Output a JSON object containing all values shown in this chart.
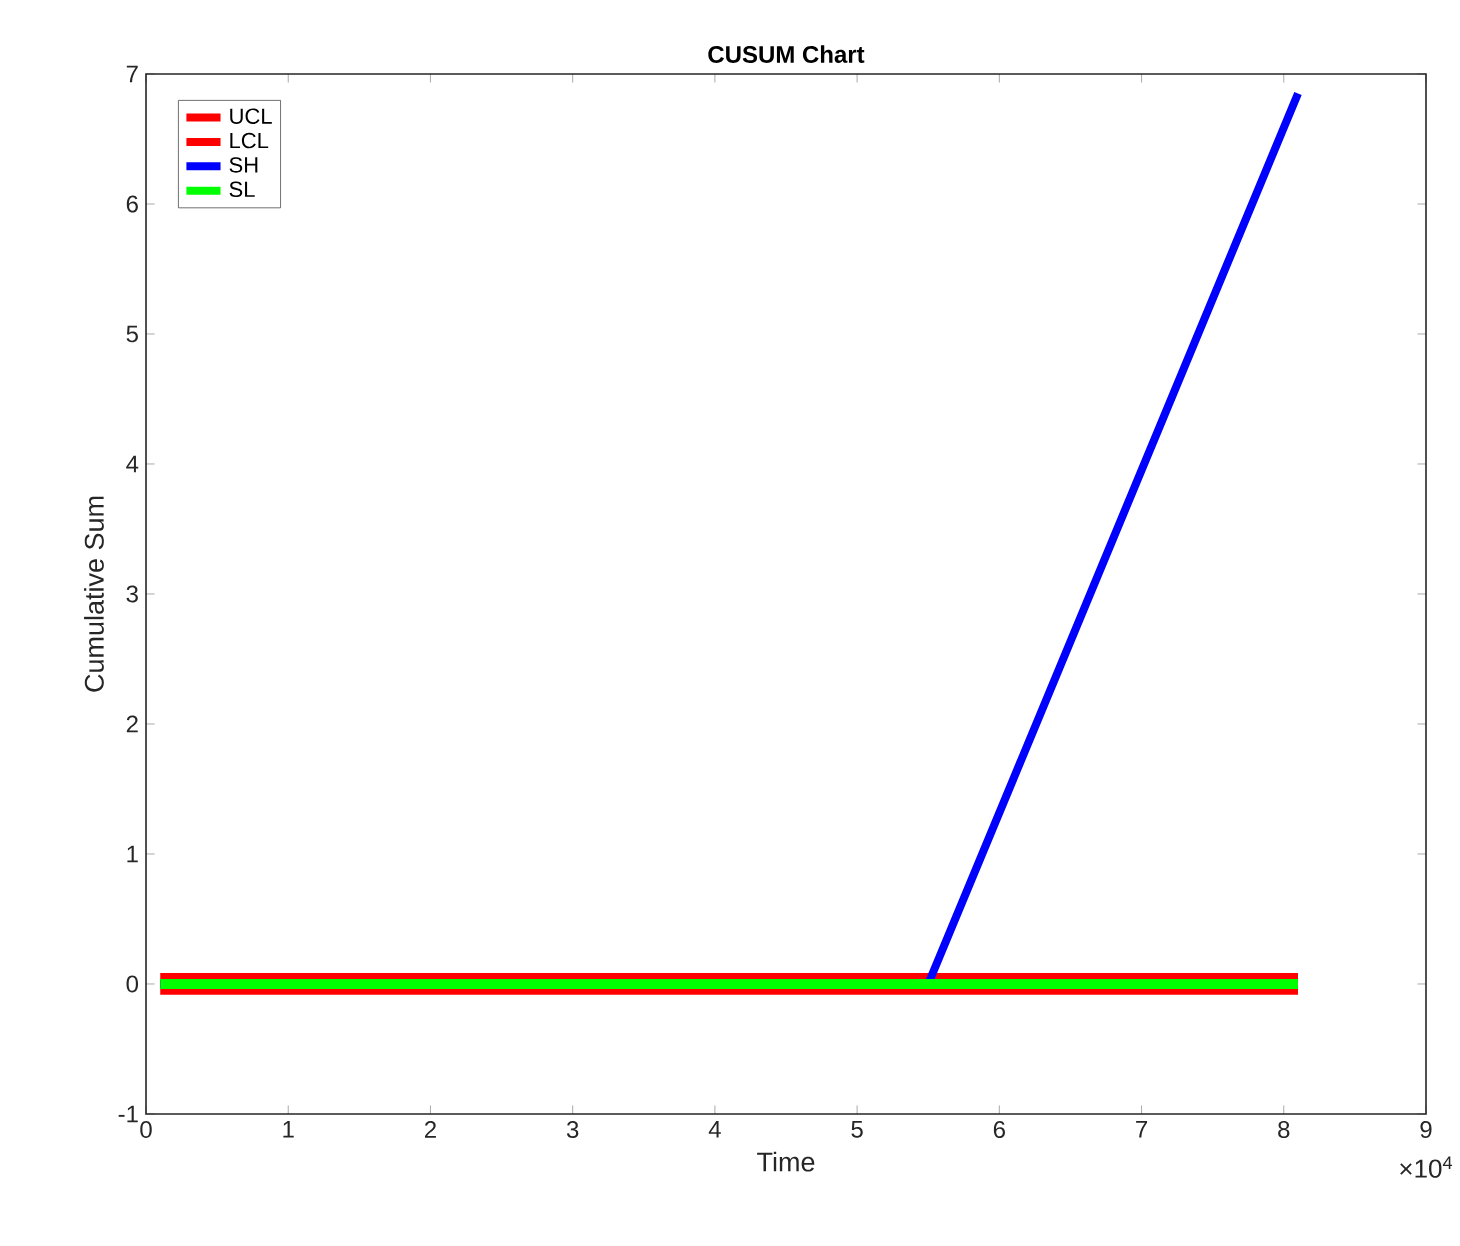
{
  "chart_data": {
    "type": "line",
    "title": "CUSUM Chart",
    "xlabel": "Time",
    "ylabel": "Cumulative Sum",
    "xlim": [
      0,
      9
    ],
    "ylim": [
      -1,
      7
    ],
    "xticks": [
      0,
      1,
      2,
      3,
      4,
      5,
      6,
      7,
      8,
      9
    ],
    "yticks": [
      -1,
      0,
      1,
      2,
      3,
      4,
      5,
      6,
      7
    ],
    "annotations": [
      "×10$^{4}$"
    ],
    "legend": "top left",
    "grid": false,
    "marker": "none",
    "line_style": "solid",
    "series": [
      {
        "name": "UCL",
        "color": "#ff0000",
        "x": [
          0.1,
          8.1
        ],
        "values": [
          0.03,
          0.03
        ]
      },
      {
        "name": "LCL",
        "color": "#ff0000",
        "x": [
          0.1,
          8.1
        ],
        "values": [
          -0.03,
          -0.03
        ]
      },
      {
        "name": "SH",
        "color": "#0000ff",
        "x": [
          0.1,
          5.5,
          8.1
        ],
        "values": [
          0,
          0,
          6.85
        ]
      },
      {
        "name": "SL",
        "color": "#00ff00",
        "x": [
          0.1,
          8.1
        ],
        "values": [
          0,
          0
        ]
      }
    ]
  }
}
